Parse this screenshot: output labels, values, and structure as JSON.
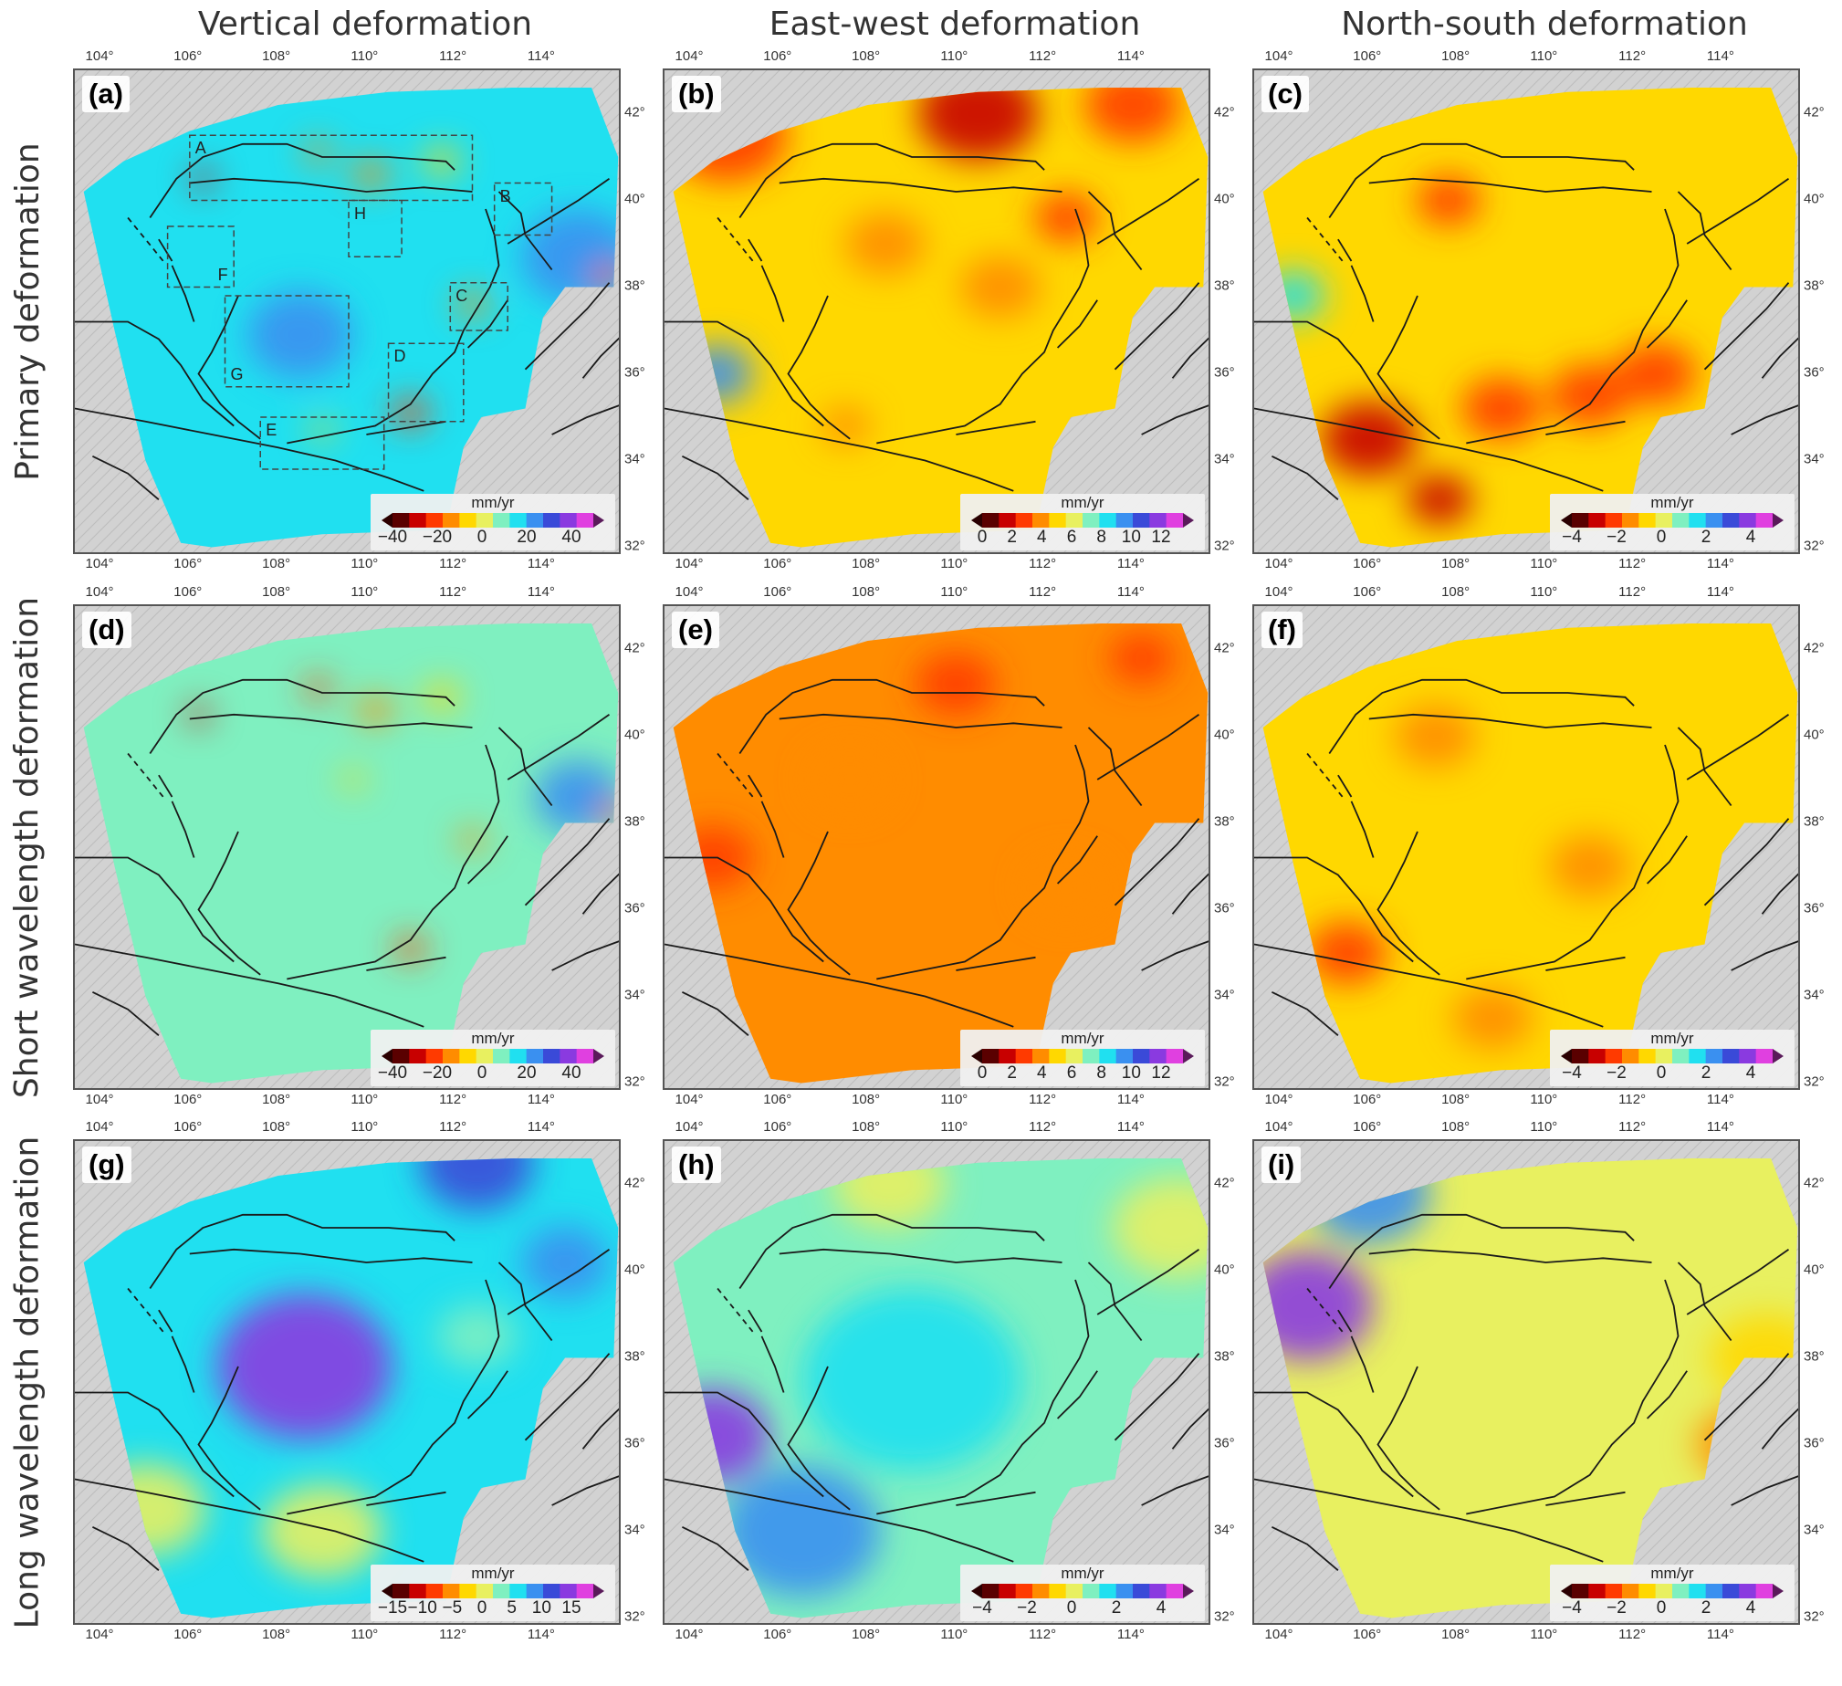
{
  "columns": [
    "Vertical deformation",
    "East-west deformation",
    "North-south deformation"
  ],
  "rows": [
    "Primary deformation",
    "Short wavelength deformation",
    "Long wavelength deformation"
  ],
  "axes": {
    "lon_ticks": [
      "104°",
      "106°",
      "108°",
      "110°",
      "112°",
      "114°"
    ],
    "lat_ticks": [
      "42°",
      "40°",
      "38°",
      "36°",
      "34°",
      "32°"
    ]
  },
  "unit": "mm/yr",
  "panels": [
    {
      "label": "(a)",
      "field": "vertical-primary",
      "scale": [
        "−40",
        "−20",
        "0",
        "20",
        "40"
      ]
    },
    {
      "label": "(b)",
      "field": "ew-primary",
      "scale": [
        "0",
        "2",
        "4",
        "6",
        "8",
        "10",
        "12"
      ]
    },
    {
      "label": "(c)",
      "field": "ns-primary",
      "scale": [
        "−4",
        "−2",
        "0",
        "2",
        "4"
      ]
    },
    {
      "label": "(d)",
      "field": "vertical-short",
      "scale": [
        "−40",
        "−20",
        "0",
        "20",
        "40"
      ]
    },
    {
      "label": "(e)",
      "field": "ew-short",
      "scale": [
        "0",
        "2",
        "4",
        "6",
        "8",
        "10",
        "12"
      ]
    },
    {
      "label": "(f)",
      "field": "ns-short",
      "scale": [
        "−4",
        "−2",
        "0",
        "2",
        "4"
      ]
    },
    {
      "label": "(g)",
      "field": "vertical-long",
      "scale": [
        "−15",
        "−10",
        "−5",
        "0",
        "5",
        "10",
        "15"
      ]
    },
    {
      "label": "(h)",
      "field": "ew-long",
      "scale": [
        "−4",
        "−2",
        "0",
        "2",
        "4"
      ]
    },
    {
      "label": "(i)",
      "field": "ns-long",
      "scale": [
        "−4",
        "−2",
        "0",
        "2",
        "4"
      ]
    }
  ],
  "study_boxes": [
    "A",
    "B",
    "C",
    "D",
    "E",
    "F",
    "G",
    "H"
  ],
  "colors": {
    "colormap": [
      "#5a0000",
      "#c80000",
      "#ff3a00",
      "#ff8c00",
      "#ffd800",
      "#e8f060",
      "#7ff0c0",
      "#20e0f0",
      "#3a90f0",
      "#3a4ad8",
      "#8a3ae0",
      "#e040e0"
    ],
    "fault_line": "#1a1a1a",
    "terrain": "#d2d2d2"
  }
}
